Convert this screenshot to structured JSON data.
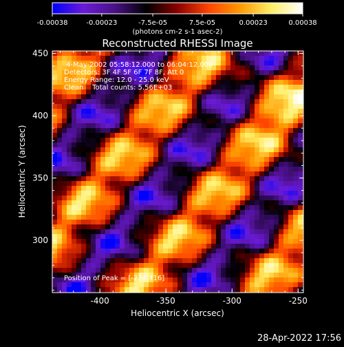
{
  "chart_data": {
    "type": "heatmap",
    "title": "Reconstructed RHESSI Image",
    "xlabel": "Heliocentric X (arcsec)",
    "ylabel": "Heliocentric Y (arcsec)",
    "xlim": [
      -436,
      -246
    ],
    "ylim": [
      258,
      452
    ],
    "x_ticks": [
      "-400",
      "-350",
      "-300",
      "-250"
    ],
    "x_tick_values": [
      -400,
      -350,
      -300,
      -250
    ],
    "y_ticks": [
      "300",
      "350",
      "400",
      "450"
    ],
    "y_tick_values": [
      300,
      350,
      400,
      450
    ],
    "colorbar": {
      "ticks": [
        "-0.00038",
        "-0.00023",
        "-7.5e-05",
        "7.5e-05",
        "0.00023",
        "0.00038"
      ],
      "tick_values": [
        -0.00038,
        -0.00023,
        -7.5e-05,
        7.5e-05,
        0.00023,
        0.00038
      ],
      "range": [
        -0.00038,
        0.00038
      ],
      "units": "(photons cm-2 s-1 asec-2)"
    },
    "colormap_stops": [
      "#0000ff",
      "#6a1bd6",
      "#4a1088",
      "#000000",
      "#8b0000",
      "#ff4500",
      "#ff9900",
      "#ffee66",
      "#ffffff"
    ],
    "peak": [
      -274,
      416
    ],
    "band_angle_deg": 40
  },
  "annotations": {
    "time": "4-May-2002 05:58:12.000 to 06:04:12.000",
    "detectors": "Detectors: 3F 4F 5F 6F 7F 8F, Att 0",
    "energy": "Energy Range: 12.0 - 25.0 keV",
    "clean": "Clean    Total counts: 5.56E+03",
    "peak_text": "Position of Peak = [-274,416]"
  },
  "footer": {
    "timestamp": "28-Apr-2022 17:56"
  }
}
